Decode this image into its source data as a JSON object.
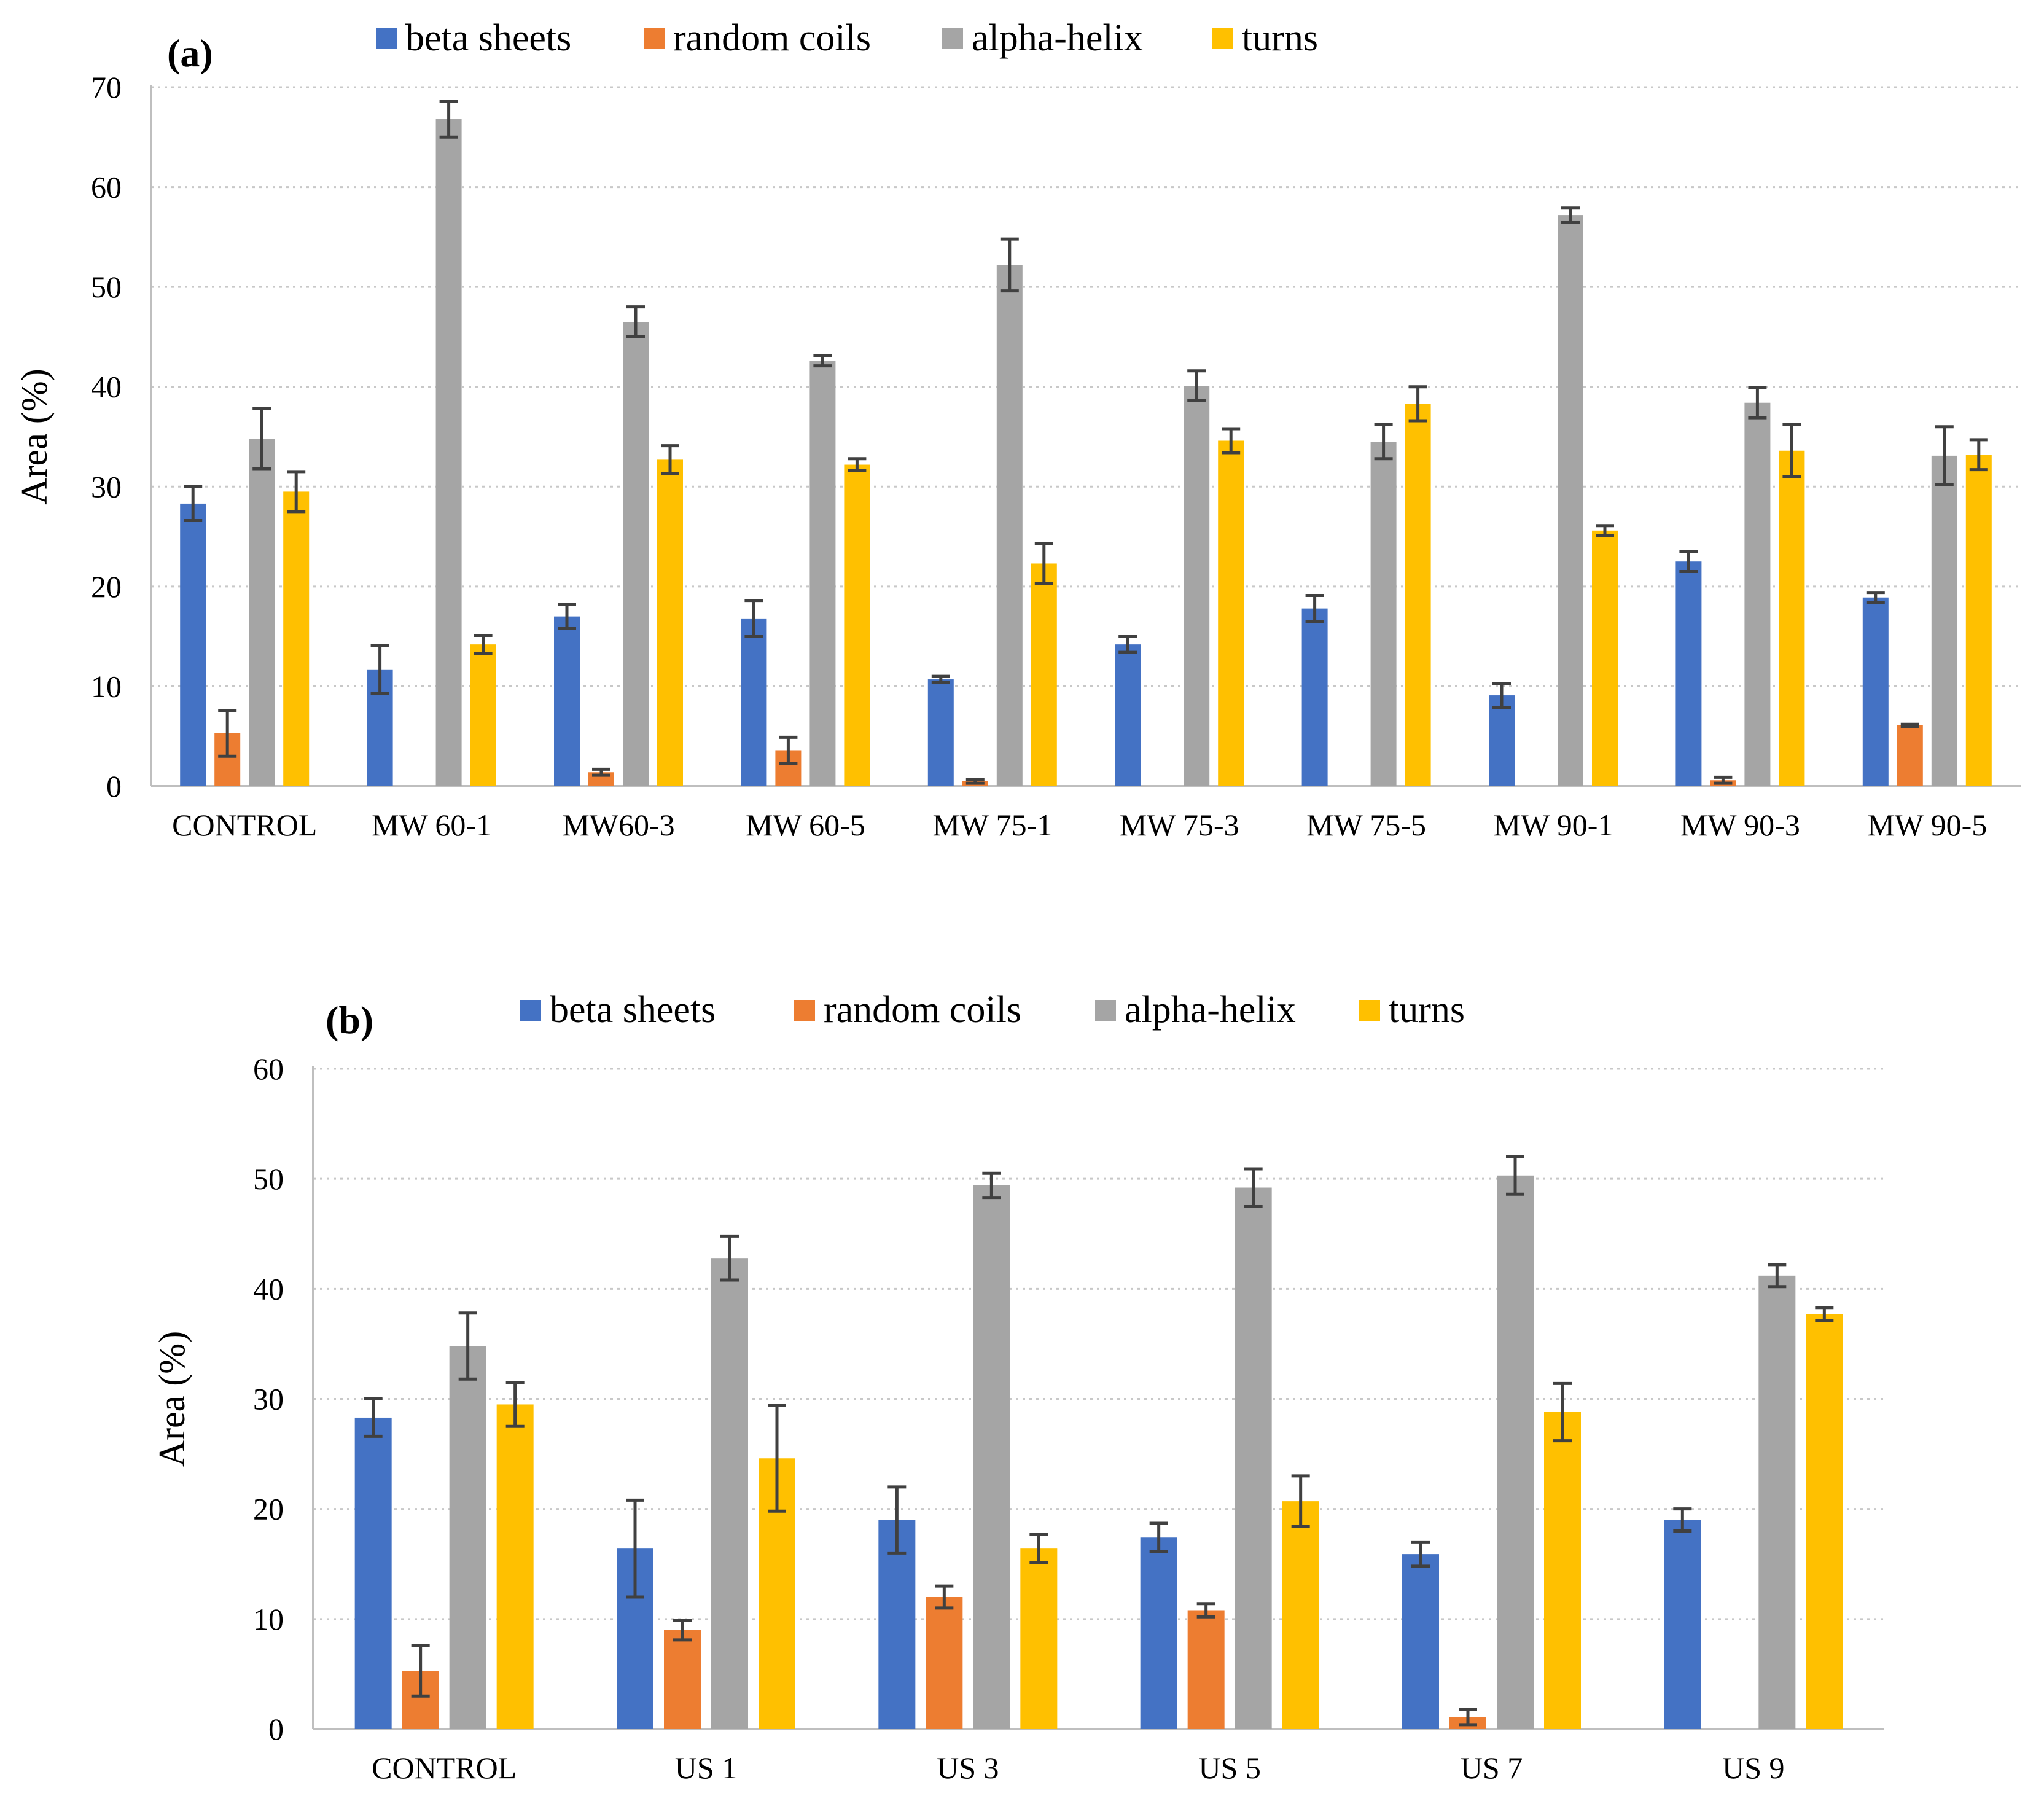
{
  "series_colors": {
    "beta sheets": "#4472C4",
    "random coils": "#ED7D31",
    "alpha-helix": "#A5A5A5",
    "turns": "#FFC000"
  },
  "chart_data": [
    {
      "type": "bar",
      "panel_label": "(a)",
      "ylabel": "Area (%)",
      "xlabel": "",
      "ylim": [
        0,
        70
      ],
      "yticks": [
        0,
        10,
        20,
        30,
        40,
        50,
        60,
        70
      ],
      "grid": true,
      "legend_position": "top",
      "categories": [
        "CONTROL",
        "MW 60-1",
        "MW60-3",
        "MW 60-5",
        "MW 75-1",
        "MW 75-3",
        "MW 75-5",
        "MW 90-1",
        "MW 90-3",
        "MW 90-5"
      ],
      "series": [
        {
          "name": "beta sheets",
          "values": [
            28.3,
            11.7,
            17.0,
            16.8,
            10.7,
            14.2,
            17.8,
            9.1,
            22.5,
            18.9
          ],
          "errors": [
            1.7,
            2.4,
            1.2,
            1.8,
            0.3,
            0.8,
            1.3,
            1.2,
            1.0,
            0.5
          ]
        },
        {
          "name": "random coils",
          "values": [
            5.3,
            0.0,
            1.4,
            3.6,
            0.5,
            0.0,
            0.0,
            0.0,
            0.6,
            6.1
          ],
          "errors": [
            2.3,
            0,
            0.3,
            1.3,
            0.2,
            0,
            0,
            0,
            0.3,
            0.1
          ]
        },
        {
          "name": "alpha-helix",
          "values": [
            34.8,
            66.8,
            46.5,
            42.6,
            52.2,
            40.1,
            34.5,
            57.2,
            38.4,
            33.1
          ],
          "errors": [
            3.0,
            1.8,
            1.5,
            0.5,
            2.6,
            1.5,
            1.7,
            0.7,
            1.5,
            2.9
          ]
        },
        {
          "name": "turns",
          "values": [
            29.5,
            14.2,
            32.7,
            32.2,
            22.3,
            34.6,
            38.3,
            25.6,
            33.6,
            33.2
          ],
          "errors": [
            2.0,
            0.9,
            1.4,
            0.6,
            2.0,
            1.2,
            1.7,
            0.5,
            2.6,
            1.5
          ]
        }
      ]
    },
    {
      "type": "bar",
      "panel_label": "(b)",
      "ylabel": "Area (%)",
      "xlabel": "",
      "ylim": [
        0,
        60
      ],
      "yticks": [
        0,
        10,
        20,
        30,
        40,
        50,
        60
      ],
      "grid": true,
      "legend_position": "top",
      "categories": [
        "CONTROL",
        "US 1",
        "US 3",
        "US 5",
        "US 7",
        "US 9"
      ],
      "series": [
        {
          "name": "beta sheets",
          "values": [
            28.3,
            16.4,
            19.0,
            17.4,
            15.9,
            19.0
          ],
          "errors": [
            1.7,
            4.4,
            3.0,
            1.3,
            1.1,
            1.0
          ]
        },
        {
          "name": "random coils",
          "values": [
            5.3,
            9.0,
            12.0,
            10.8,
            1.1,
            0.0
          ],
          "errors": [
            2.3,
            0.9,
            1.0,
            0.6,
            0.7,
            0
          ]
        },
        {
          "name": "alpha-helix",
          "values": [
            34.8,
            42.8,
            49.4,
            49.2,
            50.3,
            41.2
          ],
          "errors": [
            3.0,
            2.0,
            1.1,
            1.7,
            1.7,
            1.0
          ]
        },
        {
          "name": "turns",
          "values": [
            29.5,
            24.6,
            16.4,
            20.7,
            28.8,
            37.7
          ],
          "errors": [
            2.0,
            4.8,
            1.3,
            2.3,
            2.6,
            0.6
          ]
        }
      ]
    }
  ]
}
